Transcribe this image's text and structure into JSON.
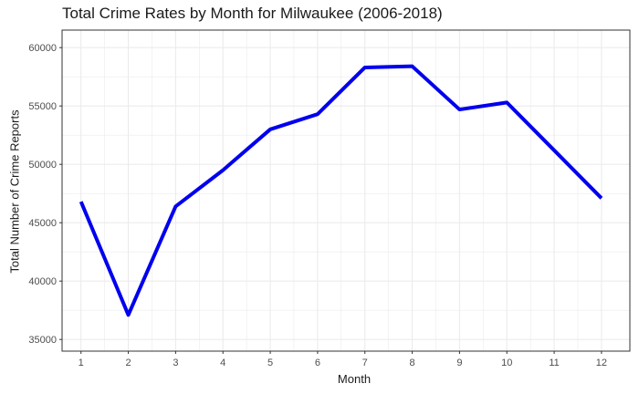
{
  "chart_data": {
    "type": "line",
    "title": "Total Crime Rates by Month for Milwaukee (2006-2018)",
    "xlabel": "Month",
    "ylabel": "Total Number of Crime Reports",
    "x": [
      1,
      2,
      3,
      4,
      5,
      6,
      7,
      8,
      9,
      10,
      11,
      12
    ],
    "series": [
      {
        "values": [
          46800,
          37100,
          46400,
          49500,
          53000,
          54300,
          58300,
          58400,
          54700,
          55300,
          51200,
          47100
        ]
      }
    ],
    "xlim": [
      0.6,
      12.6
    ],
    "ylim": [
      34000,
      61500
    ],
    "x_ticks": [
      1,
      2,
      3,
      4,
      5,
      6,
      7,
      8,
      9,
      10,
      11,
      12
    ],
    "y_ticks": [
      35000,
      40000,
      45000,
      50000,
      55000,
      60000
    ],
    "grid": true,
    "legend": "none",
    "line_color": "#0000ee",
    "grid_color": "#ebebeb",
    "panel_border_color": "#333333"
  }
}
